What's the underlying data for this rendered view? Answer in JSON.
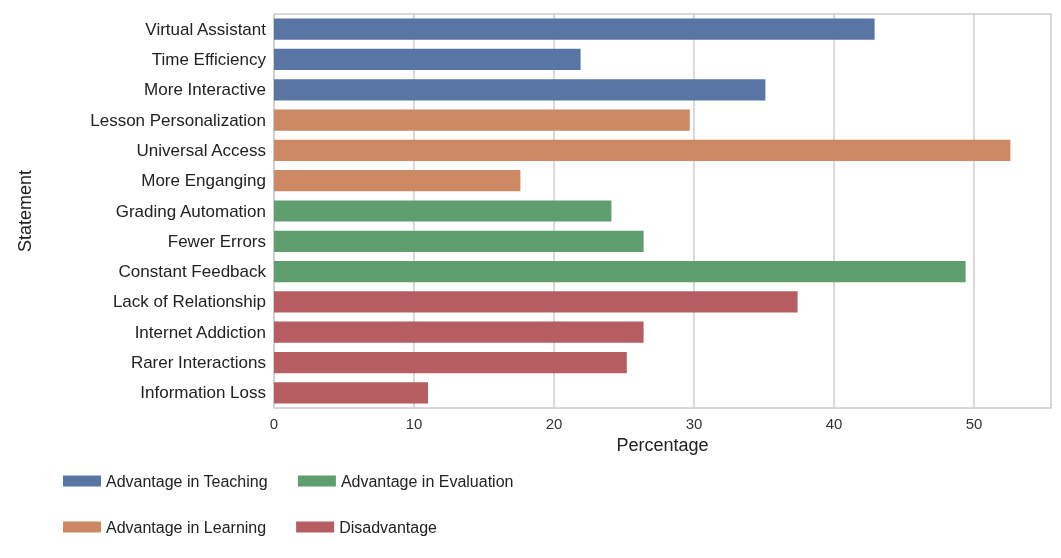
{
  "chart_data": {
    "type": "bar",
    "orientation": "horizontal",
    "xlabel": "Percentage",
    "ylabel": "Statement",
    "categories": [
      "Virtual Assistant",
      "Time Efficiency",
      "More Interactive",
      "Lesson Personalization",
      "Universal Access",
      "More Enganging",
      "Grading Automation",
      "Fewer Errors",
      "Constant Feedback",
      "Lack of Relationship",
      "Internet Addiction",
      "Rarer Interactions",
      "Information Loss"
    ],
    "series": [
      {
        "name": "Advantage in Teaching",
        "color": "#5875a4",
        "values": [
          42.9,
          21.9,
          35.1,
          null,
          null,
          null,
          null,
          null,
          null,
          null,
          null,
          null,
          null
        ]
      },
      {
        "name": "Advantage in Learning",
        "color": "#cc8963",
        "values": [
          null,
          null,
          null,
          29.7,
          52.6,
          17.6,
          null,
          null,
          null,
          null,
          null,
          null,
          null
        ]
      },
      {
        "name": "Advantage in Evaluation",
        "color": "#5f9e6e",
        "values": [
          null,
          null,
          null,
          null,
          null,
          null,
          24.1,
          26.4,
          49.4,
          null,
          null,
          null,
          null
        ]
      },
      {
        "name": "Disadvantage",
        "color": "#b55d60",
        "values": [
          null,
          null,
          null,
          null,
          null,
          null,
          null,
          null,
          null,
          37.4,
          26.4,
          25.2,
          11.0
        ]
      }
    ],
    "xlim": [
      0,
      55.5
    ],
    "xticks": [
      0,
      10,
      20,
      30,
      40,
      50
    ],
    "grid": "x",
    "legend": "bottom left"
  }
}
